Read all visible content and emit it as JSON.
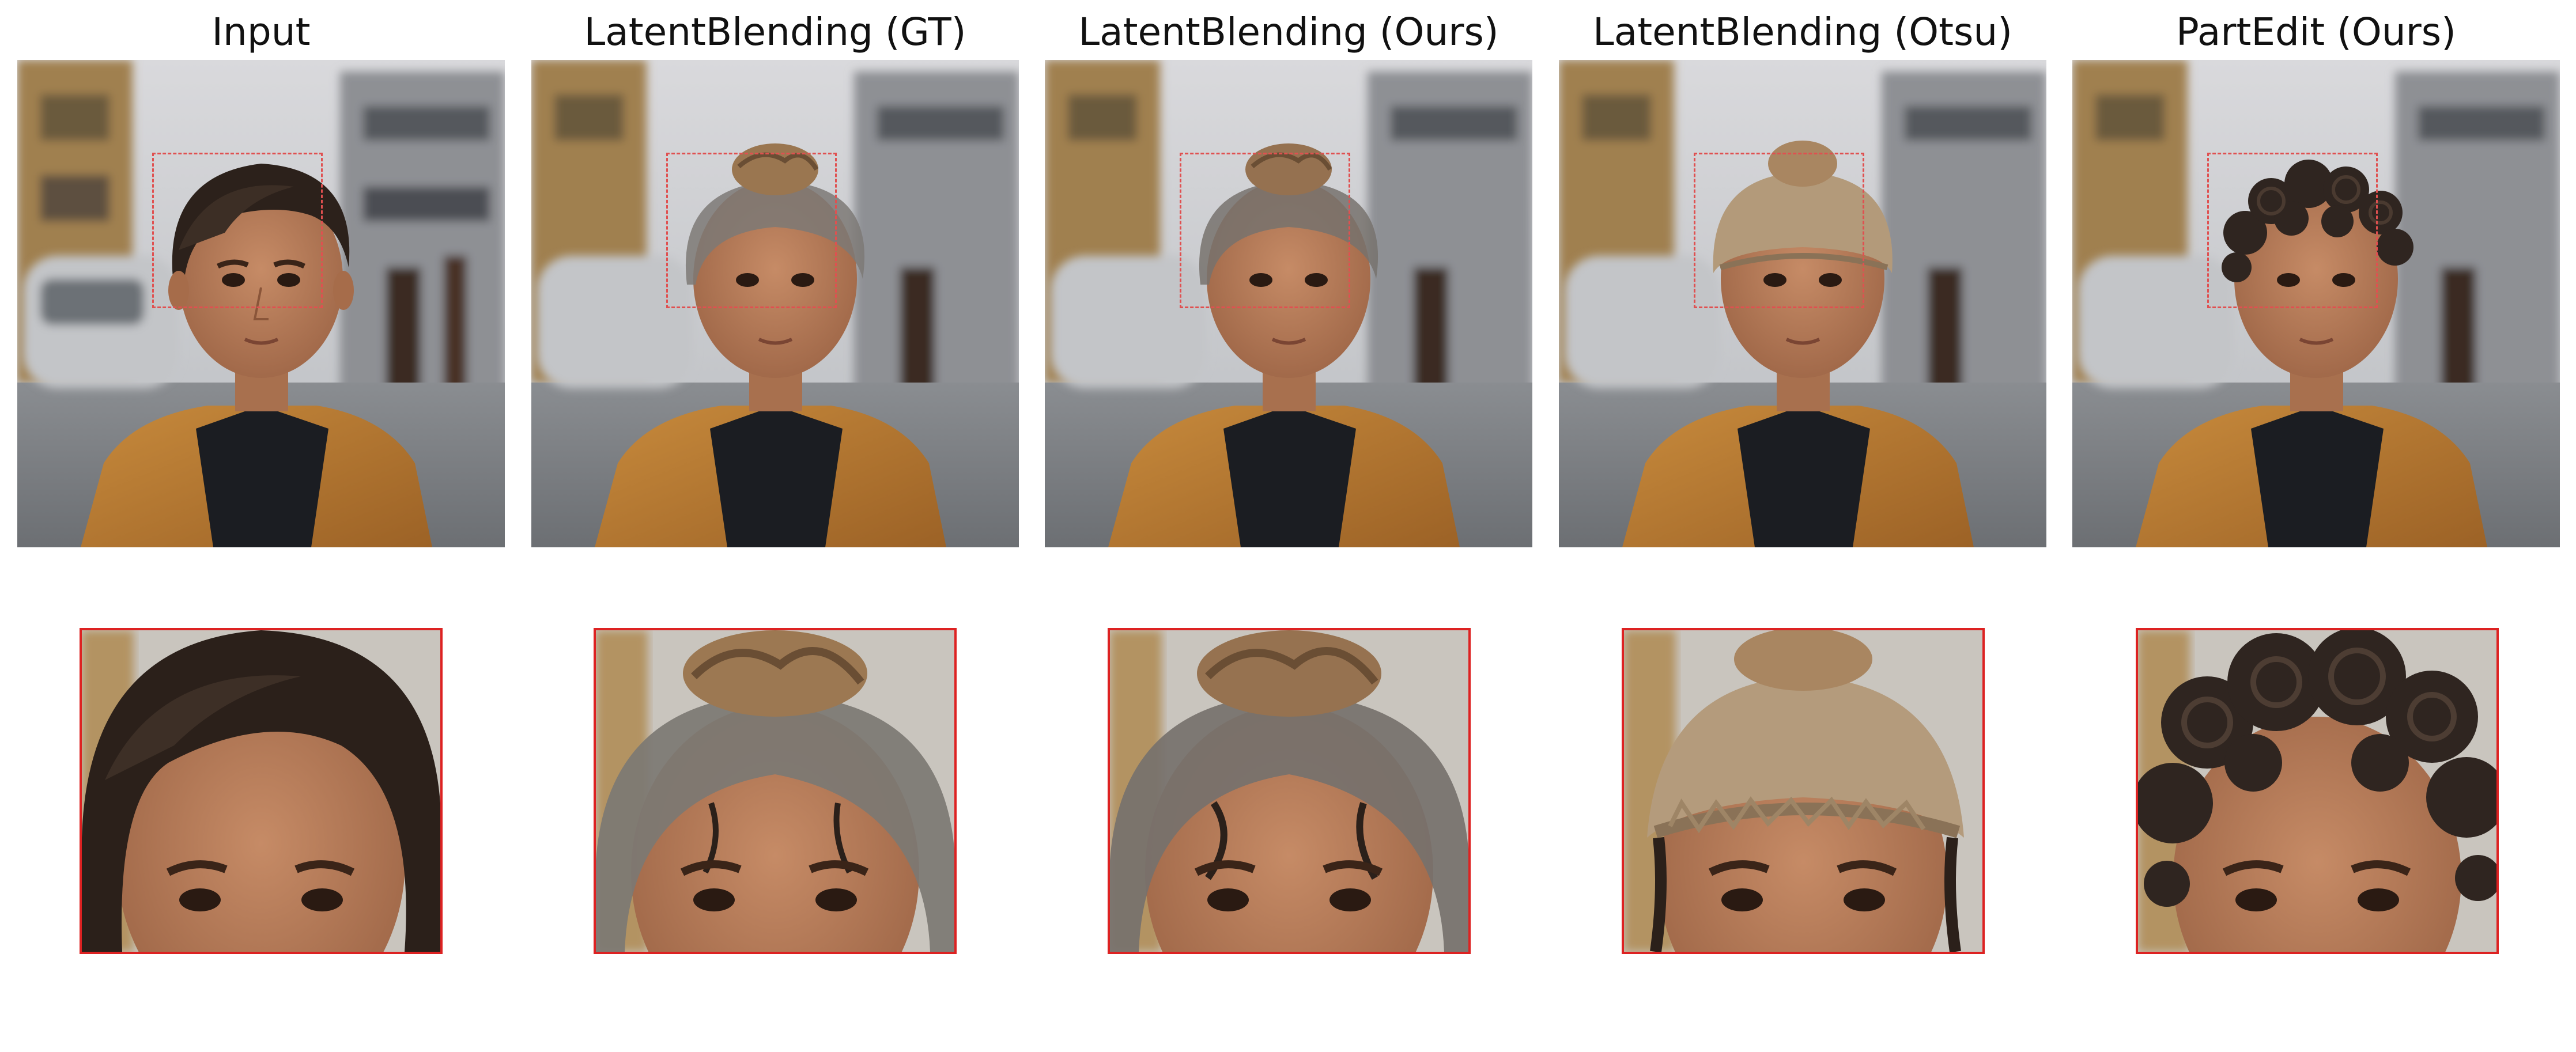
{
  "panels": [
    {
      "title": "Input",
      "hair": "short-straight-dark"
    },
    {
      "title": "LatentBlending (GT)",
      "hair": "bun-gray-wisps"
    },
    {
      "title": "LatentBlending (Ours)",
      "hair": "bun-gray-wisps"
    },
    {
      "title": "LatentBlending (Otsu)",
      "hair": "burlap-beanie-bun"
    },
    {
      "title": "PartEdit (Ours)",
      "hair": "curly-dark"
    }
  ],
  "colors": {
    "selection_box": "#e05050",
    "crop_border": "#dd2222",
    "jacket": "#b8782f",
    "skin": "#b57b57"
  }
}
